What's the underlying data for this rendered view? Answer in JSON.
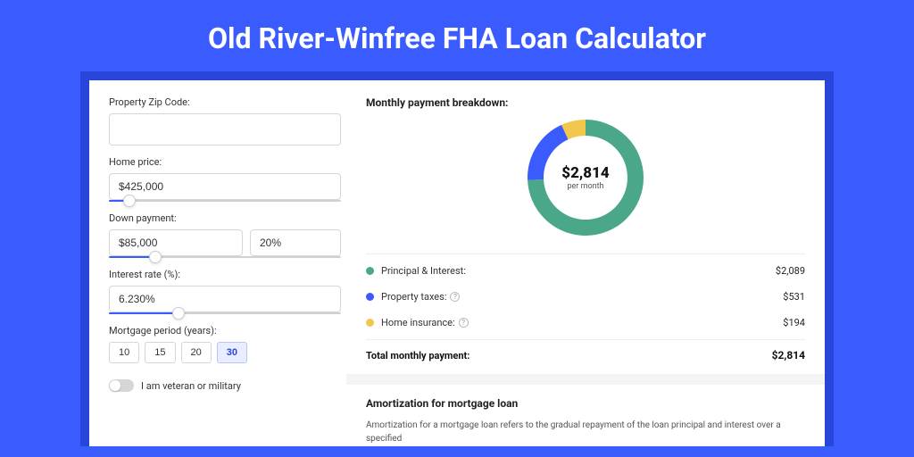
{
  "page_title": "Old River-Winfree FHA Loan Calculator",
  "colors": {
    "page_bg": "#3a5cff",
    "outer_card_bg": "#2846d9",
    "card_bg": "#ffffff",
    "slider_fill": "#3a5cff",
    "active_period_bg": "#e8edff"
  },
  "form": {
    "zip_label": "Property Zip Code:",
    "zip_value": "",
    "home_price_label": "Home price:",
    "home_price_value": "$425,000",
    "home_price_slider_pct": 9,
    "down_payment_label": "Down payment:",
    "down_payment_value": "$85,000",
    "down_payment_pct_value": "20%",
    "down_payment_slider_pct": 20,
    "interest_label": "Interest rate (%):",
    "interest_value": "6.230%",
    "interest_slider_pct": 30,
    "period_label": "Mortgage period (years):",
    "periods": [
      {
        "label": "10",
        "active": false
      },
      {
        "label": "15",
        "active": false
      },
      {
        "label": "20",
        "active": false
      },
      {
        "label": "30",
        "active": true
      }
    ],
    "veteran_label": "I am veteran or military",
    "veteran_on": false
  },
  "breakdown": {
    "title": "Monthly payment breakdown:",
    "donut": {
      "center_amount": "$2,814",
      "center_sub": "per month",
      "size": 130,
      "stroke_width": 18,
      "slices": [
        {
          "key": "principal_interest",
          "value": 2089,
          "color": "#4aa789"
        },
        {
          "key": "property_taxes",
          "value": 531,
          "color": "#3a5cff"
        },
        {
          "key": "home_insurance",
          "value": 194,
          "color": "#f2c74e"
        }
      ]
    },
    "legend": [
      {
        "color": "#4aa789",
        "label": "Principal & Interest:",
        "value": "$2,089",
        "info": false
      },
      {
        "color": "#3a5cff",
        "label": "Property taxes:",
        "value": "$531",
        "info": true
      },
      {
        "color": "#f2c74e",
        "label": "Home insurance:",
        "value": "$194",
        "info": true
      }
    ],
    "total_label": "Total monthly payment:",
    "total_value": "$2,814"
  },
  "amortization": {
    "title": "Amortization for mortgage loan",
    "body": "Amortization for a mortgage loan refers to the gradual repayment of the loan principal and interest over a specified"
  }
}
